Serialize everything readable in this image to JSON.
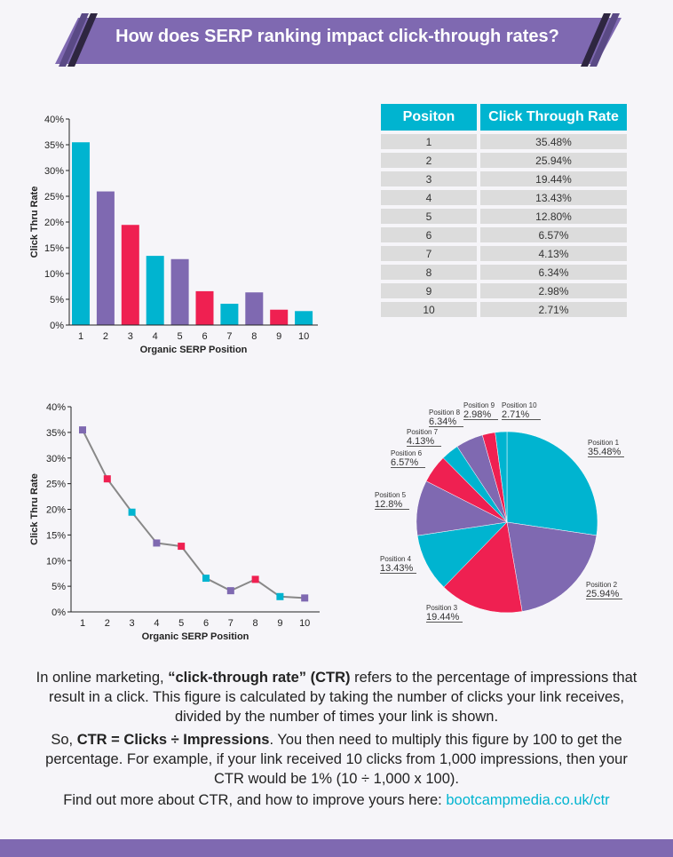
{
  "title": "How does SERP ranking impact click-through rates?",
  "colors": {
    "cyan": "#00b4d0",
    "purple": "#7f69b1",
    "red": "#ef2051"
  },
  "chart_data": [
    {
      "type": "bar",
      "categories": [
        "1",
        "2",
        "3",
        "4",
        "5",
        "6",
        "7",
        "8",
        "9",
        "10"
      ],
      "values": [
        35.48,
        25.94,
        19.44,
        13.43,
        12.8,
        6.57,
        4.13,
        6.34,
        2.98,
        2.71
      ],
      "xlabel": "Organic SERP Position",
      "ylabel": "Click Thru Rate",
      "ylim": [
        0,
        40
      ],
      "yticks": [
        "0%",
        "5%",
        "10%",
        "15%",
        "20%",
        "25%",
        "30%",
        "35%",
        "40%"
      ]
    },
    {
      "type": "line",
      "categories": [
        "1",
        "2",
        "3",
        "4",
        "5",
        "6",
        "7",
        "8",
        "9",
        "10"
      ],
      "values": [
        35.48,
        25.94,
        19.44,
        13.43,
        12.8,
        6.57,
        4.13,
        6.34,
        2.98,
        2.71
      ],
      "xlabel": "Organic SERP Position",
      "ylabel": "Click Thru Rate",
      "ylim": [
        0,
        40
      ],
      "yticks": [
        "0%",
        "5%",
        "10%",
        "15%",
        "20%",
        "25%",
        "30%",
        "35%",
        "40%"
      ]
    },
    {
      "type": "pie",
      "labels": [
        "Position 1",
        "Position 2",
        "Position 3",
        "Position 4",
        "Position 5",
        "Position 6",
        "Position 7",
        "Position 8",
        "Position 9",
        "Position 10"
      ],
      "values": [
        35.48,
        25.94,
        19.44,
        13.43,
        12.8,
        6.57,
        4.13,
        6.34,
        2.98,
        2.71
      ],
      "value_labels": [
        "35.48%",
        "25.94%",
        "19.44%",
        "13.43%",
        "12.8%",
        "6.57%",
        "4.13%",
        "6.34%",
        "2.98%",
        "2.71%"
      ]
    },
    {
      "type": "table",
      "headers": [
        "Positon",
        "Click Through Rate"
      ],
      "rows": [
        [
          "1",
          "35.48%"
        ],
        [
          "2",
          "25.94%"
        ],
        [
          "3",
          "19.44%"
        ],
        [
          "4",
          "13.43%"
        ],
        [
          "5",
          "12.80%"
        ],
        [
          "6",
          "6.57%"
        ],
        [
          "7",
          "4.13%"
        ],
        [
          "8",
          "6.34%"
        ],
        [
          "9",
          "2.98%"
        ],
        [
          "10",
          "2.71%"
        ]
      ]
    }
  ],
  "para1": [
    "In online marketing, ",
    "“click-through rate” (CTR)",
    " refers to the percentage of impressions that result in a click. This figure is calculated by taking the number of clicks your link receives, divided by the number of times your link is shown."
  ],
  "para2": [
    "So, ",
    "CTR = Clicks ÷ Impressions",
    ". You then need to multiply this figure by 100 to get the percentage. For example, if your link received 10 clicks from 1,000 impressions, then your CTR would be 1% (10 ÷ 1,000 x 100)."
  ],
  "para3": [
    "Find out more about CTR, and how to improve yours here: ",
    "bootcampmedia.co.uk/ctr"
  ]
}
